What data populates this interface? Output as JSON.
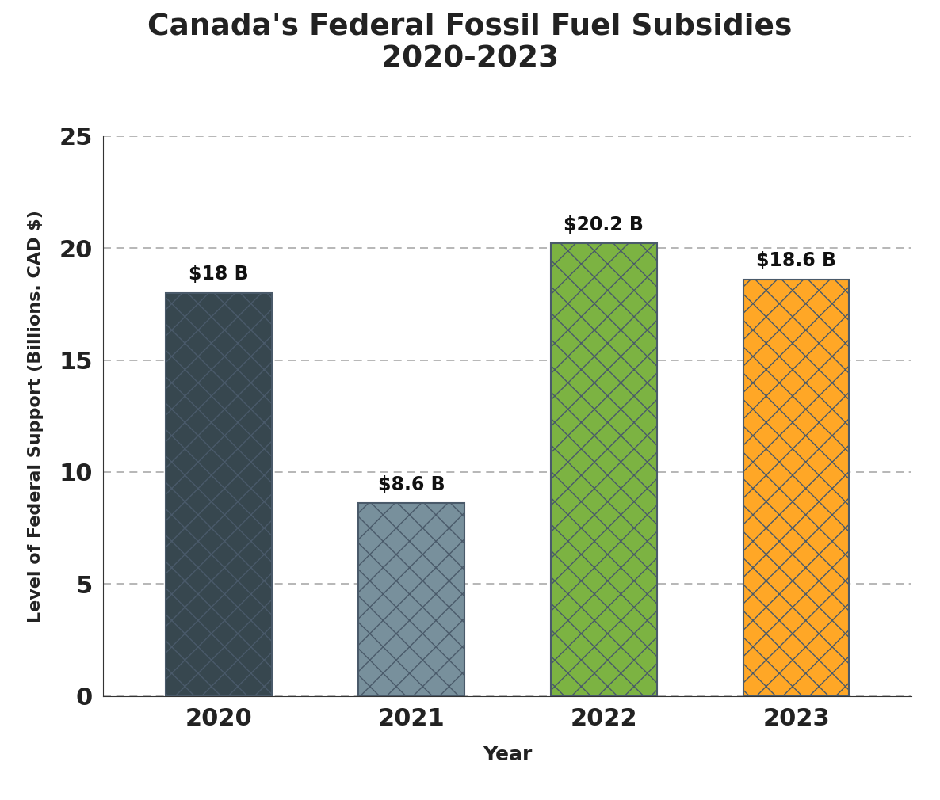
{
  "chart_data": {
    "type": "bar",
    "title": "Canada's Federal Fossil Fuel Subsidies\n2020-2023",
    "x_label": "Year",
    "y_label": "Level of Federal Support (Billions. CAD $)",
    "categories": [
      "2020",
      "2021",
      "2022",
      "2023"
    ],
    "values": [
      18,
      8.6,
      20.2,
      18.6
    ],
    "value_labels": [
      "$18 B",
      "$8.6 B",
      "$20.2 B",
      "$18.6 B"
    ],
    "colors": [
      "#37474f",
      "#78909c",
      "#7cb342",
      "#ffa726"
    ],
    "ylim": [
      0,
      25
    ],
    "yticks": [
      0,
      5,
      10,
      15,
      20,
      25
    ],
    "grid": true,
    "data_labels": true
  }
}
